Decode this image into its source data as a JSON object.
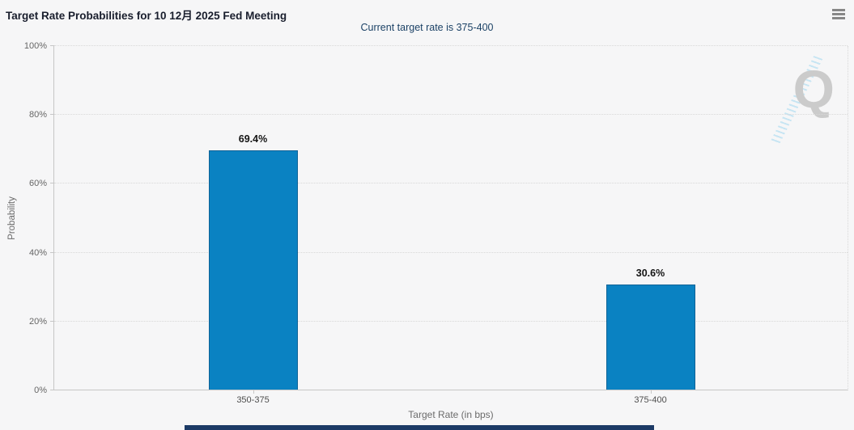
{
  "header": {
    "menu_icon": "hamburger-menu-icon"
  },
  "chart_data": {
    "type": "bar",
    "title": "Target Rate Probabilities for 10 12月 2025 Fed Meeting",
    "subtitle": "Current target rate is 375-400",
    "categories": [
      "350-375",
      "375-400"
    ],
    "values": [
      69.4,
      30.6
    ],
    "data_labels": [
      "69.4%",
      "30.6%"
    ],
    "xlabel": "Target Rate (in bps)",
    "ylabel": "Probability",
    "ylim": [
      0,
      100
    ],
    "yticks": [
      0,
      20,
      40,
      60,
      80,
      100
    ],
    "ytick_labels": [
      "0%",
      "20%",
      "40%",
      "60%",
      "80%",
      "100%"
    ],
    "grid": "horizontal-dotted",
    "legend_position": "none",
    "bar_color": "#0a82c2",
    "bar_border_color": "#0f6397"
  },
  "watermark": {
    "letter": "Q"
  },
  "colors": {
    "background": "#f6f6f7",
    "subtitle_navy": "#1c4266",
    "axis_gray": "#c6c6c6",
    "grid_gray": "#d8d8d8",
    "scrollbar_navy": "#1c3a66"
  }
}
